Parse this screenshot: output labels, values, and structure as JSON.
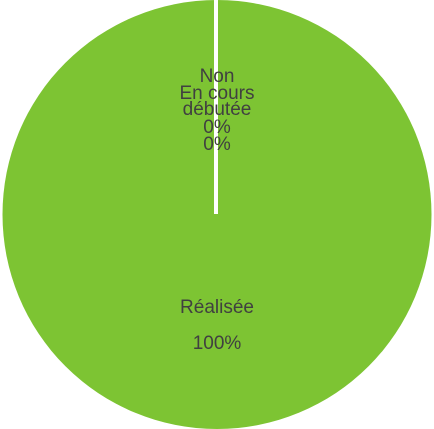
{
  "chart_data": {
    "type": "pie",
    "categories": [
      "Non débutée",
      "En cours",
      "Réalisée"
    ],
    "values": [
      0,
      0,
      100
    ],
    "labels": [
      {
        "name": "Non débutée",
        "value_label": "0%"
      },
      {
        "name": "En cours",
        "value_label": "0%"
      },
      {
        "name": "Réalisée",
        "value_label": "100%"
      }
    ],
    "colors": [
      "#4472c4",
      "#ed7d31",
      "#7dc433"
    ],
    "separator_color": "#ffffff",
    "label_color": "#404040",
    "legend": "none",
    "grid": false
  }
}
